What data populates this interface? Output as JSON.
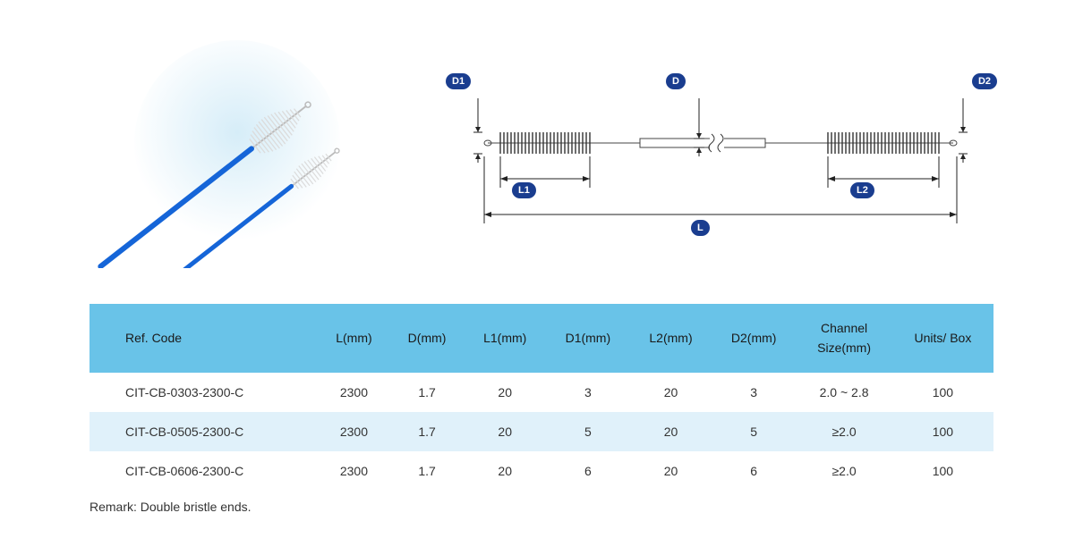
{
  "diagram": {
    "labels": {
      "D1": "D1",
      "D": "D",
      "D2": "D2",
      "L1": "L1",
      "L2": "L2",
      "L": "L"
    },
    "label_bg": "#1a3d8f",
    "label_fg": "#ffffff",
    "stroke": "#222222",
    "bristle_color": "#333333",
    "tube_color": "#ffffff",
    "tube_stroke": "#444444"
  },
  "photo": {
    "bg_circle_color": "#d6edf8",
    "brush_handle_color": "#1565d8",
    "bristle_color": "#e6e6e6",
    "wire_color": "#bbbbbb"
  },
  "table": {
    "header_bg": "#69c3e8",
    "row_alt_bg": "#e0f1fa",
    "columns": [
      "Ref. Code",
      "L(mm)",
      "D(mm)",
      "L1(mm)",
      "D1(mm)",
      "L2(mm)",
      "D2(mm)",
      "Channel\nSize(mm)",
      "Units/ Box"
    ],
    "rows": [
      [
        "CIT-CB-0303-2300-C",
        "2300",
        "1.7",
        "20",
        "3",
        "20",
        "3",
        "2.0 ~ 2.8",
        "100"
      ],
      [
        "CIT-CB-0505-2300-C",
        "2300",
        "1.7",
        "20",
        "5",
        "20",
        "5",
        "≥2.0",
        "100"
      ],
      [
        "CIT-CB-0606-2300-C",
        "2300",
        "1.7",
        "20",
        "6",
        "20",
        "6",
        "≥2.0",
        "100"
      ]
    ]
  },
  "remark": "Remark: Double bristle ends."
}
